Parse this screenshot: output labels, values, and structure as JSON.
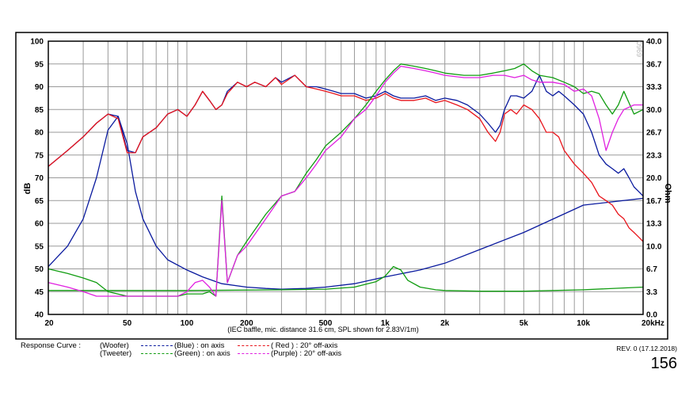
{
  "chart_data": {
    "type": "line",
    "caption": "(IEC baffle, mic. distance 31.6 cm, SPL shown for 2.83V/1m)",
    "ylabel": "dB",
    "y2label": "Ohm",
    "x_scale": "log",
    "xlim": [
      20,
      20000
    ],
    "ylim": [
      40,
      100
    ],
    "y2lim": [
      0,
      40
    ],
    "grid": true,
    "x_ticks": [
      {
        "v": 20,
        "label": "20"
      },
      {
        "v": 50,
        "label": "50"
      },
      {
        "v": 100,
        "label": "100"
      },
      {
        "v": 200,
        "label": "200"
      },
      {
        "v": 500,
        "label": "500"
      },
      {
        "v": 1000,
        "label": "1k"
      },
      {
        "v": 2000,
        "label": "2k"
      },
      {
        "v": 5000,
        "label": "5k"
      },
      {
        "v": 10000,
        "label": "10k"
      },
      {
        "v": 20000,
        "label": "20kHz"
      }
    ],
    "y_ticks": [
      40,
      45,
      50,
      55,
      60,
      65,
      70,
      75,
      80,
      85,
      90,
      95,
      100
    ],
    "y2_ticks": [
      "0.0",
      "3.3",
      "6.7",
      "10.0",
      "13.3",
      "16.7",
      "20.0",
      "23.3",
      "26.7",
      "30.0",
      "33.3",
      "36.7",
      "40.0"
    ],
    "series": [
      {
        "name": "Woofer (Blue) : on axis",
        "axis": "left",
        "color": "#0a1a9e",
        "x": [
          20,
          25,
          30,
          35,
          40,
          45,
          50,
          55,
          60,
          70,
          80,
          90,
          100,
          110,
          120,
          130,
          140,
          150,
          160,
          180,
          200,
          220,
          250,
          280,
          300,
          350,
          400,
          450,
          500,
          550,
          600,
          700,
          800,
          900,
          1000,
          1100,
          1200,
          1400,
          1600,
          1800,
          2000,
          2300,
          2600,
          3000,
          3300,
          3600,
          3800,
          4000,
          4300,
          4600,
          5000,
          5500,
          6000,
          6500,
          7000,
          7500,
          8000,
          9000,
          10000,
          11000,
          12000,
          13000,
          14000,
          15000,
          16000,
          17000,
          18000,
          19000,
          20000
        ],
        "y": [
          72.5,
          76,
          79,
          82,
          84,
          83.5,
          76,
          75.5,
          79,
          81,
          84,
          85,
          83.5,
          86,
          89,
          87,
          85,
          86,
          89,
          91,
          90,
          91,
          90,
          92,
          91,
          92.5,
          90,
          90,
          89.5,
          89,
          88.5,
          88.5,
          87.5,
          88,
          89,
          88,
          87.5,
          87.5,
          88,
          87,
          87.5,
          87,
          86,
          84,
          82,
          80,
          81.5,
          85,
          88,
          88,
          87.5,
          89,
          92.5,
          89,
          88,
          89,
          88,
          86,
          84,
          80,
          75,
          73,
          72,
          71,
          72,
          70,
          68,
          67,
          66
        ]
      },
      {
        "name": "Woofer (Red) : 20° off-axis",
        "axis": "left",
        "color": "#e8141b",
        "x": [
          20,
          25,
          30,
          35,
          40,
          45,
          50,
          55,
          60,
          70,
          80,
          90,
          100,
          110,
          120,
          130,
          140,
          150,
          160,
          180,
          200,
          220,
          250,
          280,
          300,
          350,
          400,
          450,
          500,
          550,
          600,
          700,
          800,
          900,
          1000,
          1100,
          1200,
          1400,
          1600,
          1800,
          2000,
          2300,
          2600,
          3000,
          3300,
          3600,
          3800,
          4000,
          4300,
          4600,
          5000,
          5500,
          6000,
          6500,
          7000,
          7500,
          8000,
          9000,
          10000,
          11000,
          12000,
          13000,
          14000,
          15000,
          16000,
          17000,
          18000,
          19000,
          20000
        ],
        "y": [
          72.5,
          76,
          79,
          82,
          84,
          83,
          75.5,
          75.5,
          79,
          81,
          84,
          85,
          83.5,
          86,
          89,
          87,
          85,
          86,
          88.5,
          91,
          90,
          91,
          90,
          92,
          90.5,
          92.5,
          90,
          89.5,
          89,
          88.5,
          88,
          88,
          87,
          87.5,
          88.5,
          87.5,
          87,
          87,
          87.5,
          86.5,
          87,
          86,
          85,
          83,
          80,
          78,
          80,
          84,
          85,
          84,
          86,
          85,
          83,
          80,
          80,
          79,
          76,
          73,
          71,
          69,
          66,
          65,
          64,
          62,
          61,
          59,
          58,
          57,
          56
        ]
      },
      {
        "name": "Tweeter (Green) : on axis",
        "axis": "left",
        "color": "#109c10",
        "x": [
          20,
          25,
          30,
          35,
          40,
          50,
          60,
          70,
          80,
          90,
          100,
          110,
          120,
          130,
          140,
          150,
          160,
          180,
          200,
          250,
          300,
          350,
          400,
          450,
          500,
          600,
          700,
          800,
          900,
          1000,
          1100,
          1200,
          1400,
          1600,
          1800,
          2000,
          2500,
          3000,
          3500,
          4000,
          4500,
          5000,
          5500,
          6000,
          7000,
          8000,
          9000,
          10000,
          11000,
          12000,
          13000,
          14000,
          15000,
          16000,
          18000,
          20000
        ],
        "y": [
          50,
          49,
          48,
          47,
          45,
          44,
          44,
          44,
          44,
          44,
          44.5,
          44.5,
          44.5,
          45,
          44,
          66,
          47,
          53,
          56,
          62,
          66,
          67,
          71,
          74,
          77,
          80,
          83,
          86,
          89,
          91.5,
          93.5,
          95,
          94.5,
          94,
          93.5,
          93,
          92.5,
          92.5,
          93,
          93.5,
          94,
          95,
          93.5,
          92.5,
          92,
          91,
          90,
          88.5,
          89,
          88.5,
          86,
          84,
          86,
          89,
          84,
          85
        ]
      },
      {
        "name": "Tweeter (Purple) : 20° off-axis",
        "axis": "left",
        "color": "#e020e0",
        "x": [
          20,
          25,
          30,
          35,
          40,
          50,
          60,
          70,
          80,
          90,
          100,
          110,
          120,
          130,
          140,
          150,
          160,
          180,
          200,
          250,
          300,
          350,
          400,
          450,
          500,
          600,
          700,
          800,
          900,
          1000,
          1100,
          1200,
          1400,
          1600,
          1800,
          2000,
          2500,
          3000,
          3500,
          4000,
          4500,
          5000,
          5500,
          6000,
          7000,
          8000,
          9000,
          10000,
          11000,
          12000,
          13000,
          14000,
          15000,
          16000,
          18000,
          20000
        ],
        "y": [
          47,
          46,
          45,
          44,
          44,
          44,
          44,
          44,
          44,
          44,
          45,
          47,
          47.5,
          46,
          44,
          65,
          47,
          53,
          55,
          61,
          66,
          67,
          70,
          73,
          76,
          79,
          83,
          85,
          88,
          91,
          93,
          94.5,
          94,
          93.5,
          93,
          92.5,
          92,
          92,
          92.5,
          92.5,
          92,
          92.5,
          91.5,
          91,
          91,
          90.5,
          89,
          89.5,
          88,
          83,
          76,
          80,
          83,
          85,
          86,
          86
        ]
      },
      {
        "name": "Woofer impedance (Blue)",
        "axis": "right",
        "color": "#0a1a9e",
        "x": [
          20,
          25,
          30,
          35,
          40,
          45,
          50,
          55,
          60,
          70,
          80,
          100,
          120,
          150,
          200,
          250,
          300,
          400,
          500,
          700,
          1000,
          1500,
          2000,
          3000,
          5000,
          10000,
          20000
        ],
        "y": [
          7,
          10,
          14,
          20,
          27,
          29,
          25,
          18,
          14,
          10,
          8,
          6.5,
          5.5,
          4.5,
          4,
          3.8,
          3.7,
          3.8,
          4,
          4.5,
          5.5,
          6.5,
          7.5,
          9.5,
          12,
          16,
          17
        ]
      },
      {
        "name": "Tweeter impedance (Green)",
        "axis": "right",
        "color": "#109c10",
        "x": [
          20,
          100,
          300,
          500,
          700,
          900,
          1000,
          1100,
          1200,
          1300,
          1500,
          1800,
          2000,
          3000,
          5000,
          10000,
          20000
        ],
        "y": [
          3.5,
          3.5,
          3.6,
          3.7,
          4,
          4.8,
          5.6,
          7,
          6.5,
          5,
          4,
          3.6,
          3.5,
          3.4,
          3.4,
          3.6,
          4
        ]
      }
    ]
  },
  "legend": {
    "label": "Response Curve :",
    "rows": [
      {
        "driver": "(Woofer)",
        "c1": "(Blue)  : on axis",
        "c2": "( Red ) : 20° off-axis",
        "color1": "#0a1a9e",
        "color2": "#e8141b"
      },
      {
        "driver": "(Tweeter)",
        "c1": "(Green) : on axis",
        "c2": "(Purple) : 20° off-axis",
        "color1": "#109c10",
        "color2": "#e020e0"
      }
    ]
  },
  "revision": "REV. 0 (17.12.2018)",
  "page_number": "156",
  "watermark": "0969"
}
